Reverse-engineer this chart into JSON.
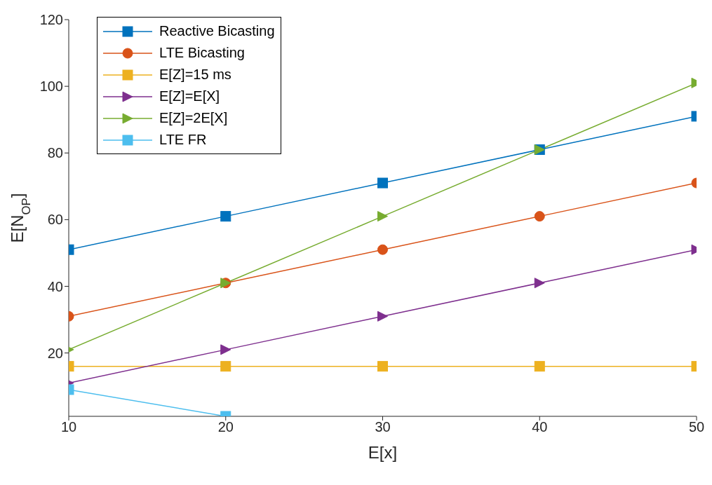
{
  "chart_data": {
    "type": "line",
    "xlabel": "E[x]",
    "ylabel": "E[N$_{OP}$]",
    "x": [
      10,
      20,
      30,
      40,
      50
    ],
    "series": [
      {
        "name": "Reactive Bicasting",
        "color": "#0072bd",
        "marker": "square",
        "values": [
          51,
          61,
          71,
          81,
          91
        ]
      },
      {
        "name": "LTE Bicasting",
        "color": "#d95319",
        "marker": "circle",
        "values": [
          31,
          41,
          51,
          61,
          71
        ]
      },
      {
        "name": "E[Z]=15 ms",
        "color": "#edb120",
        "marker": "square",
        "values": [
          16,
          16,
          16,
          16,
          16
        ]
      },
      {
        "name": "E[Z]=E[X]",
        "color": "#7e2f8e",
        "marker": "triangle",
        "values": [
          11,
          21,
          31,
          41,
          51
        ]
      },
      {
        "name": "E[Z]=2E[X]",
        "color": "#77ac30",
        "marker": "triangle",
        "values": [
          21,
          41,
          61,
          81,
          101
        ]
      },
      {
        "name": "LTE FR",
        "color": "#4dbeee",
        "marker": "square",
        "values": [
          9,
          1,
          null,
          null,
          null
        ]
      }
    ],
    "xlim": [
      10,
      50
    ],
    "xticks": [
      10,
      20,
      30,
      40,
      50
    ],
    "ylim": [
      1,
      120
    ],
    "yticks": [
      20,
      40,
      60,
      80,
      100,
      120
    ],
    "grid": false,
    "legend": "top left"
  }
}
